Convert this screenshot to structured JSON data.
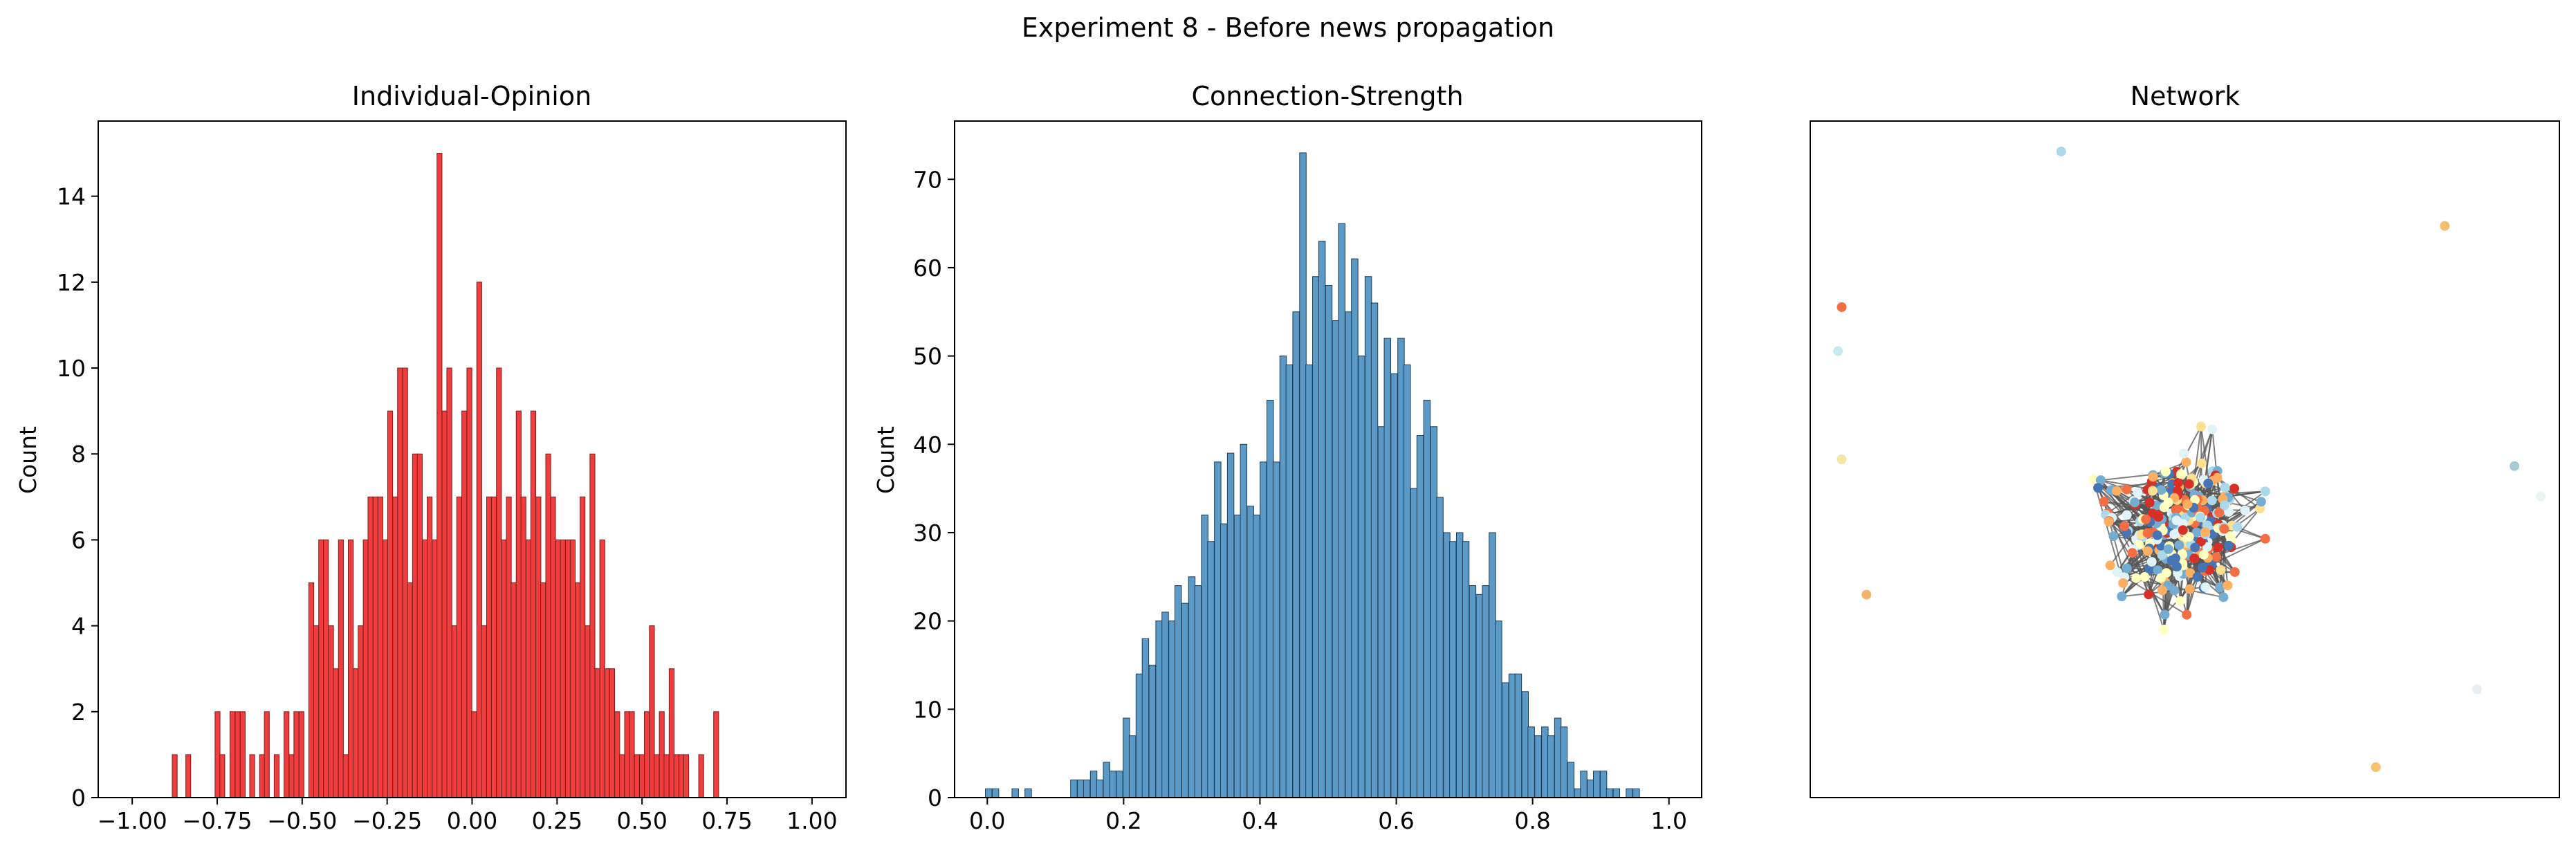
{
  "figure": {
    "title": "Experiment 8 - Before news propagation"
  },
  "chart_data": [
    {
      "type": "bar",
      "title": "Individual-Opinion",
      "xlabel": "",
      "ylabel": "Count",
      "xlim": [
        -1.1,
        1.1
      ],
      "ylim": [
        0,
        15.75
      ],
      "xticks": [
        -1.0,
        -0.75,
        -0.5,
        -0.25,
        0.0,
        0.25,
        0.5,
        0.75,
        1.0
      ],
      "xtick_labels": [
        "−1.00",
        "−0.75",
        "−0.50",
        "−0.25",
        "0.00",
        "0.25",
        "0.50",
        "0.75",
        "1.00"
      ],
      "yticks": [
        0,
        2,
        4,
        6,
        8,
        10,
        12,
        14
      ],
      "ytick_labels": [
        "0",
        "2",
        "4",
        "6",
        "8",
        "10",
        "12",
        "14"
      ],
      "bin_width": 0.0146,
      "bar_color": "#f03d3d",
      "edge_color": "#7a1e1e",
      "bins": [
        [
          -0.875,
          1
        ],
        [
          -0.835,
          1
        ],
        [
          -0.749,
          2
        ],
        [
          -0.735,
          1
        ],
        [
          -0.705,
          2
        ],
        [
          -0.69,
          2
        ],
        [
          -0.675,
          2
        ],
        [
          -0.647,
          1
        ],
        [
          -0.618,
          1
        ],
        [
          -0.604,
          2
        ],
        [
          -0.575,
          1
        ],
        [
          -0.546,
          2
        ],
        [
          -0.531,
          1
        ],
        [
          -0.517,
          2
        ],
        [
          -0.502,
          2
        ],
        [
          -0.488,
          0
        ],
        [
          -0.473,
          5
        ],
        [
          -0.459,
          4
        ],
        [
          -0.444,
          6
        ],
        [
          -0.43,
          6
        ],
        [
          -0.415,
          4
        ],
        [
          -0.401,
          3
        ],
        [
          -0.386,
          6
        ],
        [
          -0.372,
          1
        ],
        [
          -0.357,
          6
        ],
        [
          -0.343,
          3
        ],
        [
          -0.328,
          4
        ],
        [
          -0.313,
          6
        ],
        [
          -0.299,
          7
        ],
        [
          -0.284,
          7
        ],
        [
          -0.27,
          7
        ],
        [
          -0.255,
          6
        ],
        [
          -0.241,
          9
        ],
        [
          -0.226,
          7
        ],
        [
          -0.212,
          10
        ],
        [
          -0.197,
          10
        ],
        [
          -0.183,
          5
        ],
        [
          -0.168,
          8
        ],
        [
          -0.154,
          8
        ],
        [
          -0.139,
          6
        ],
        [
          -0.125,
          7
        ],
        [
          -0.11,
          6
        ],
        [
          -0.096,
          15
        ],
        [
          -0.081,
          9
        ],
        [
          -0.067,
          10
        ],
        [
          -0.052,
          4
        ],
        [
          -0.038,
          7
        ],
        [
          -0.023,
          9
        ],
        [
          -0.008,
          10
        ],
        [
          0.006,
          2
        ],
        [
          0.021,
          12
        ],
        [
          0.035,
          4
        ],
        [
          0.05,
          7
        ],
        [
          0.064,
          7
        ],
        [
          0.079,
          10
        ],
        [
          0.093,
          6
        ],
        [
          0.108,
          7
        ],
        [
          0.122,
          5
        ],
        [
          0.137,
          9
        ],
        [
          0.151,
          7
        ],
        [
          0.166,
          6
        ],
        [
          0.18,
          9
        ],
        [
          0.195,
          7
        ],
        [
          0.209,
          5
        ],
        [
          0.224,
          8
        ],
        [
          0.238,
          7
        ],
        [
          0.253,
          6
        ],
        [
          0.267,
          6
        ],
        [
          0.282,
          6
        ],
        [
          0.296,
          6
        ],
        [
          0.311,
          5
        ],
        [
          0.325,
          7
        ],
        [
          0.34,
          4
        ],
        [
          0.354,
          8
        ],
        [
          0.369,
          3
        ],
        [
          0.383,
          6
        ],
        [
          0.398,
          3
        ],
        [
          0.412,
          3
        ],
        [
          0.427,
          2
        ],
        [
          0.441,
          1
        ],
        [
          0.456,
          2
        ],
        [
          0.47,
          2
        ],
        [
          0.485,
          1
        ],
        [
          0.5,
          1
        ],
        [
          0.514,
          2
        ],
        [
          0.529,
          4
        ],
        [
          0.543,
          1
        ],
        [
          0.558,
          2
        ],
        [
          0.572,
          1
        ],
        [
          0.587,
          3
        ],
        [
          0.601,
          1
        ],
        [
          0.616,
          1
        ],
        [
          0.63,
          1
        ],
        [
          0.674,
          1
        ],
        [
          0.718,
          2
        ]
      ]
    },
    {
      "type": "bar",
      "title": "Connection-Strength",
      "xlabel": "",
      "ylabel": "Count",
      "xlim": [
        -0.048,
        1.048
      ],
      "ylim": [
        0,
        76.6
      ],
      "xticks": [
        0.0,
        0.2,
        0.4,
        0.6,
        0.8,
        1.0
      ],
      "xtick_labels": [
        "0.0",
        "0.2",
        "0.4",
        "0.6",
        "0.8",
        "1.0"
      ],
      "yticks": [
        0,
        10,
        20,
        30,
        40,
        50,
        60,
        70
      ],
      "ytick_labels": [
        "0",
        "10",
        "20",
        "30",
        "40",
        "50",
        "60",
        "70"
      ],
      "bin_width": 0.0096,
      "bar_color": "#5b9ac6",
      "edge_color": "#1d3c57",
      "bins": [
        [
          0.002,
          1
        ],
        [
          0.012,
          1
        ],
        [
          0.041,
          1
        ],
        [
          0.06,
          1
        ],
        [
          0.127,
          2
        ],
        [
          0.137,
          2
        ],
        [
          0.146,
          2
        ],
        [
          0.156,
          3
        ],
        [
          0.165,
          2
        ],
        [
          0.175,
          4
        ],
        [
          0.184,
          3
        ],
        [
          0.194,
          3
        ],
        [
          0.204,
          9
        ],
        [
          0.213,
          7
        ],
        [
          0.223,
          14
        ],
        [
          0.232,
          18
        ],
        [
          0.242,
          15
        ],
        [
          0.252,
          20
        ],
        [
          0.261,
          21
        ],
        [
          0.271,
          20
        ],
        [
          0.28,
          24
        ],
        [
          0.29,
          22
        ],
        [
          0.3,
          25
        ],
        [
          0.309,
          24
        ],
        [
          0.319,
          32
        ],
        [
          0.328,
          29
        ],
        [
          0.338,
          38
        ],
        [
          0.347,
          31
        ],
        [
          0.357,
          39
        ],
        [
          0.367,
          32
        ],
        [
          0.376,
          40
        ],
        [
          0.386,
          33
        ],
        [
          0.395,
          32
        ],
        [
          0.405,
          38
        ],
        [
          0.415,
          45
        ],
        [
          0.424,
          38
        ],
        [
          0.434,
          50
        ],
        [
          0.443,
          49
        ],
        [
          0.453,
          55
        ],
        [
          0.463,
          73
        ],
        [
          0.472,
          49
        ],
        [
          0.482,
          59
        ],
        [
          0.491,
          63
        ],
        [
          0.501,
          58
        ],
        [
          0.511,
          54
        ],
        [
          0.52,
          65
        ],
        [
          0.53,
          55
        ],
        [
          0.539,
          61
        ],
        [
          0.549,
          50
        ],
        [
          0.559,
          59
        ],
        [
          0.568,
          56
        ],
        [
          0.578,
          42
        ],
        [
          0.587,
          52
        ],
        [
          0.597,
          48
        ],
        [
          0.607,
          52
        ],
        [
          0.616,
          49
        ],
        [
          0.626,
          35
        ],
        [
          0.635,
          41
        ],
        [
          0.645,
          45
        ],
        [
          0.655,
          42
        ],
        [
          0.664,
          34
        ],
        [
          0.674,
          30
        ],
        [
          0.683,
          29
        ],
        [
          0.693,
          30
        ],
        [
          0.702,
          29
        ],
        [
          0.712,
          24
        ],
        [
          0.722,
          23
        ],
        [
          0.731,
          24
        ],
        [
          0.741,
          30
        ],
        [
          0.75,
          20
        ],
        [
          0.76,
          13
        ],
        [
          0.77,
          14
        ],
        [
          0.779,
          14
        ],
        [
          0.789,
          12
        ],
        [
          0.798,
          8
        ],
        [
          0.808,
          7
        ],
        [
          0.818,
          8
        ],
        [
          0.827,
          7
        ],
        [
          0.837,
          9
        ],
        [
          0.846,
          8
        ],
        [
          0.856,
          4
        ],
        [
          0.866,
          1
        ],
        [
          0.875,
          3
        ],
        [
          0.885,
          2
        ],
        [
          0.894,
          3
        ],
        [
          0.904,
          3
        ],
        [
          0.913,
          1
        ],
        [
          0.923,
          1
        ],
        [
          0.942,
          1
        ],
        [
          0.952,
          1
        ]
      ]
    },
    {
      "type": "scatter",
      "title": "Network",
      "xlim": [
        0,
        1
      ],
      "ylim": [
        0,
        1
      ],
      "palette": [
        "#d73027",
        "#f46d43",
        "#fdae61",
        "#fee090",
        "#ffffbf",
        "#e0f3f8",
        "#abd9e9",
        "#74add1",
        "#4575b4"
      ],
      "edge_color": "#555555",
      "cluster": {
        "center": [
          0.5,
          0.4
        ],
        "spread": [
          0.085,
          0.09
        ],
        "n_nodes": 300,
        "n_edges": 700
      },
      "outliers": [
        {
          "x": 0.335,
          "y": 0.955,
          "color": "#abd9e9"
        },
        {
          "x": 0.042,
          "y": 0.725,
          "color": "#f46d43"
        },
        {
          "x": 0.037,
          "y": 0.66,
          "color": "#c7e9ef"
        },
        {
          "x": 0.042,
          "y": 0.5,
          "color": "#f6e6a6"
        },
        {
          "x": 0.075,
          "y": 0.3,
          "color": "#f2b36b"
        },
        {
          "x": 0.847,
          "y": 0.845,
          "color": "#f2bd6d"
        },
        {
          "x": 0.94,
          "y": 0.49,
          "color": "#a7cbd3"
        },
        {
          "x": 0.975,
          "y": 0.445,
          "color": "#e9f4f2"
        },
        {
          "x": 0.89,
          "y": 0.16,
          "color": "#e9eef0"
        },
        {
          "x": 0.755,
          "y": 0.045,
          "color": "#f2c270"
        }
      ]
    }
  ]
}
